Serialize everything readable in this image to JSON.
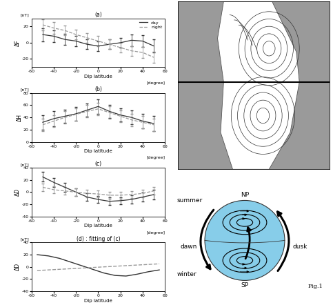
{
  "chart_data": [
    {
      "type": "line",
      "title": "(a)",
      "unit": "[nT]",
      "y_label": "ΔF",
      "x_label": "Dip latitude",
      "x_unit": "[degree]",
      "x": [
        -50,
        -40,
        -30,
        -20,
        -10,
        0,
        10,
        20,
        30,
        40,
        50
      ],
      "xlim": [
        -60,
        60
      ],
      "xticks": [
        -60,
        -40,
        -20,
        0,
        20,
        40,
        60
      ],
      "ylim": [
        -30,
        30
      ],
      "yticks": [
        -20,
        0,
        20
      ],
      "legend": "upper right",
      "series": [
        {
          "name": "day",
          "color": "#333333",
          "line_style": "solid",
          "values": [
            10,
            8,
            4,
            2,
            -2,
            -4,
            -2,
            0,
            3,
            2,
            -4
          ],
          "errors": [
            8,
            7,
            7,
            6,
            6,
            6,
            6,
            6,
            7,
            7,
            8
          ]
        },
        {
          "name": "night",
          "color": "#999999",
          "line_style": "dashed",
          "values": [
            22,
            18,
            15,
            10,
            6,
            2,
            -2,
            -6,
            -10,
            -12,
            -18
          ],
          "errors": [
            7,
            7,
            6,
            6,
            6,
            6,
            6,
            6,
            6,
            7,
            7
          ]
        }
      ]
    },
    {
      "type": "line",
      "title": "(b)",
      "unit": "[nT]",
      "y_label": "ΔH",
      "x_label": "Dip latitude",
      "x_unit": "[degree]",
      "x": [
        -50,
        -40,
        -30,
        -20,
        -10,
        0,
        10,
        20,
        30,
        40,
        50
      ],
      "xlim": [
        -60,
        60
      ],
      "xticks": [
        -60,
        -40,
        -20,
        0,
        20,
        40,
        60
      ],
      "ylim": [
        0,
        80
      ],
      "yticks": [
        0,
        20,
        40,
        60,
        80
      ],
      "series": [
        {
          "color": "#333333",
          "line_style": "solid",
          "values": [
            32,
            38,
            42,
            46,
            52,
            58,
            50,
            44,
            40,
            34,
            30
          ],
          "errors": [
            12,
            12,
            11,
            11,
            11,
            12,
            11,
            11,
            11,
            12,
            12
          ]
        },
        {
          "color": "#999999",
          "line_style": "dashed",
          "values": [
            28,
            34,
            40,
            45,
            50,
            54,
            48,
            42,
            36,
            32,
            28
          ],
          "errors": [
            10,
            10,
            10,
            10,
            10,
            10,
            10,
            10,
            10,
            10,
            10
          ]
        }
      ]
    },
    {
      "type": "line",
      "title": "(c)",
      "unit": "[nT]",
      "y_label": "ΔD",
      "x_label": "Dip latitude",
      "x_unit": "[degree]",
      "x": [
        -50,
        -40,
        -30,
        -20,
        -10,
        0,
        10,
        20,
        30,
        40,
        50
      ],
      "xlim": [
        -60,
        60
      ],
      "xticks": [
        -60,
        -40,
        -20,
        0,
        20,
        40,
        60
      ],
      "ylim": [
        -40,
        40
      ],
      "yticks": [
        -40,
        -20,
        0,
        20,
        40
      ],
      "series": [
        {
          "color": "#333333",
          "line_style": "solid",
          "values": [
            25,
            16,
            8,
            0,
            -8,
            -12,
            -15,
            -14,
            -12,
            -8,
            -4
          ],
          "errors": [
            8,
            7,
            7,
            6,
            6,
            6,
            6,
            6,
            7,
            7,
            8
          ]
        },
        {
          "color": "#999999",
          "line_style": "dashed",
          "values": [
            8,
            4,
            2,
            0,
            -2,
            -3,
            -5,
            -5,
            -4,
            -2,
            2
          ],
          "errors": [
            6,
            6,
            6,
            6,
            6,
            6,
            6,
            6,
            6,
            6,
            6
          ]
        }
      ]
    },
    {
      "type": "line",
      "title": "(d) : fitting of (c)",
      "unit": "[nT]",
      "y_label": "ΔD",
      "x_label": "Dip latitude",
      "x_unit": "[degree]",
      "x": [
        -55,
        -45,
        -35,
        -25,
        -15,
        -5,
        5,
        15,
        25,
        35,
        45,
        55
      ],
      "xlim": [
        -60,
        60
      ],
      "xticks": [
        -60,
        -40,
        -20,
        0,
        20,
        40,
        60
      ],
      "ylim": [
        -40,
        40
      ],
      "yticks": [
        -40,
        -20,
        0,
        20,
        40
      ],
      "series": [
        {
          "color": "#333333",
          "line_style": "solid",
          "values": [
            20,
            18,
            14,
            8,
            2,
            -4,
            -10,
            -14,
            -15,
            -12,
            -8,
            -5
          ]
        },
        {
          "color": "#999999",
          "line_style": "dashed",
          "values": [
            -6,
            -5,
            -4,
            -3,
            -2,
            -1,
            0,
            1,
            2,
            3,
            4,
            5
          ]
        }
      ]
    }
  ],
  "diagram": {
    "labels": {
      "north_pole": "NP",
      "south_pole": "SP",
      "north_season": "summer",
      "south_season": "winter",
      "left": "dawn",
      "right": "dusk"
    },
    "caption": "Fig.1"
  }
}
